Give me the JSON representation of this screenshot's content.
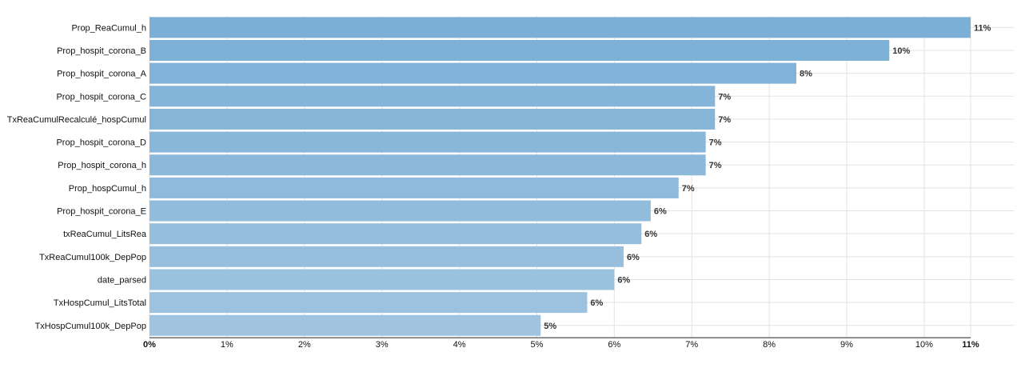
{
  "chart_data": {
    "type": "bar",
    "orientation": "horizontal",
    "categories": [
      "Prop_ReaCumul_h",
      "Prop_hospit_corona_B",
      "Prop_hospit_corona_A",
      "Prop_hospit_corona_C",
      "TxReaCumulRecalculé_hospCumul",
      "Prop_hospit_corona_D",
      "Prop_hospit_corona_h",
      "Prop_hospCumul_h",
      "Prop_hospit_corona_E",
      "txReaCumul_LitsRea",
      "TxReaCumul100k_DepPop",
      "date_parsed",
      "TxHospCumul_LitsTotal",
      "TxHospCumul100k_DepPop"
    ],
    "values": [
      10.6,
      9.55,
      8.35,
      7.3,
      7.3,
      7.18,
      7.18,
      6.83,
      6.47,
      6.35,
      6.12,
      6.0,
      5.65,
      5.05
    ],
    "data_labels": [
      "11%",
      "10%",
      "8%",
      "7%",
      "7%",
      "7%",
      "7%",
      "7%",
      "6%",
      "6%",
      "6%",
      "6%",
      "6%",
      "5%"
    ],
    "x_ticks": [
      0,
      1,
      2,
      3,
      4,
      5,
      6,
      7,
      8,
      9,
      10,
      10.6
    ],
    "x_tick_labels": [
      "0%",
      "1%",
      "2%",
      "3%",
      "4%",
      "5%",
      "6%",
      "7%",
      "8%",
      "9%",
      "10%",
      "11%"
    ],
    "xlim": [
      0,
      10.6
    ],
    "title": "",
    "xlabel": "",
    "ylabel": "",
    "grid": true,
    "legend": "none",
    "colors": {
      "bar_top": "#7bafd5",
      "bar_bottom": "#a0c4e0",
      "grid": "#e3e3e3",
      "axis": "#222222"
    }
  }
}
